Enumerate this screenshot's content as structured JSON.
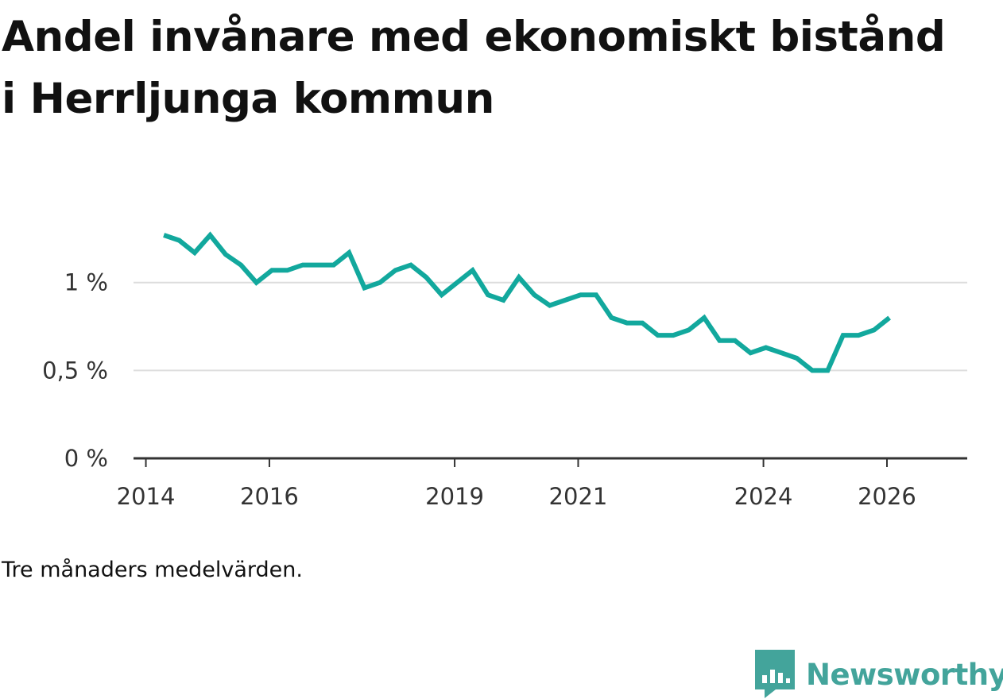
{
  "title": "Andel invånare med ekonomiskt bistånd i Herrljunga kommun",
  "caption": "Tre månaders medelvärden.",
  "brand": {
    "name": "Newsworthy",
    "icon": "newsworthy-logo-icon",
    "color": "#43a49b"
  },
  "colors": {
    "line": "#12a89d",
    "grid": "#dddddd",
    "axis": "#333333"
  },
  "chart_data": {
    "type": "line",
    "title": "Andel invånare med ekonomiskt bistånd i Herrljunga kommun",
    "xlabel": "",
    "ylabel": "",
    "grid": true,
    "xlim": [
      2013.8,
      2027.3
    ],
    "ylim": [
      0,
      1.27
    ],
    "x_ticks": [
      2014,
      2016,
      2019,
      2021,
      2024,
      2026
    ],
    "x_tick_labels": [
      "2014",
      "2016",
      "2019",
      "2021",
      "2024",
      "2026"
    ],
    "y_ticks": [
      0,
      0.5,
      1
    ],
    "y_tick_labels": [
      "0 %",
      "0,5 %",
      "1 %"
    ],
    "series": [
      {
        "name": "Andel invånare med ekonomiskt bistånd",
        "x": [
          2014.29,
          2014.54,
          2014.79,
          2015.04,
          2015.29,
          2015.54,
          2015.79,
          2016.04,
          2016.29,
          2016.54,
          2016.79,
          2017.04,
          2017.29,
          2017.54,
          2017.79,
          2018.04,
          2018.29,
          2018.54,
          2018.79,
          2019.04,
          2019.29,
          2019.54,
          2019.79,
          2020.04,
          2020.29,
          2020.54,
          2020.79,
          2021.04,
          2021.29,
          2021.54,
          2021.79,
          2022.04,
          2022.29,
          2022.54,
          2022.79,
          2023.04,
          2023.29,
          2023.54,
          2023.79,
          2024.04,
          2024.29,
          2024.54,
          2024.79,
          2025.04,
          2025.29,
          2025.54,
          2025.79,
          2026.04
        ],
        "values": [
          1.27,
          1.24,
          1.17,
          1.27,
          1.16,
          1.1,
          1.0,
          1.07,
          1.07,
          1.1,
          1.1,
          1.1,
          1.17,
          0.97,
          1.0,
          1.07,
          1.1,
          1.03,
          0.93,
          1.0,
          1.07,
          0.93,
          0.9,
          1.03,
          0.93,
          0.87,
          0.9,
          0.93,
          0.93,
          0.8,
          0.77,
          0.77,
          0.7,
          0.7,
          0.73,
          0.8,
          0.67,
          0.67,
          0.6,
          0.63,
          0.6,
          0.57,
          0.5,
          0.5,
          0.7,
          0.7,
          0.73,
          0.8
        ]
      }
    ]
  }
}
